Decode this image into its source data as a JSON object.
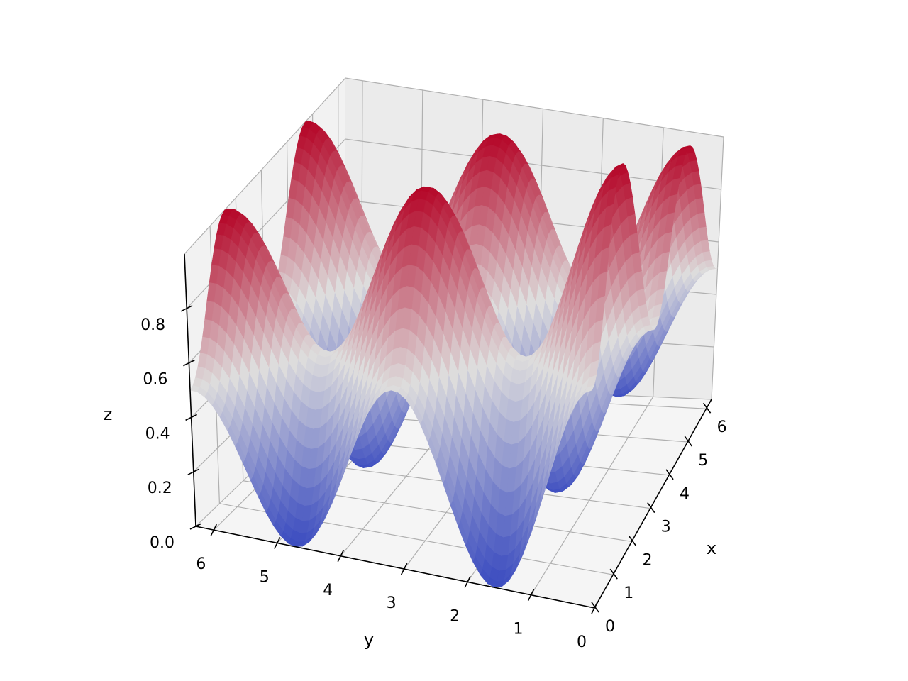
{
  "chart_data": {
    "type": "surface",
    "colormap": "coolwarm",
    "colormap_colors": [
      "#3b4cc0",
      "#dddcdc",
      "#b40426"
    ],
    "function": "z = (sin(x)^2 + cos(y)^2) / 2",
    "x": {
      "label": "x",
      "range": [
        0,
        6.283
      ],
      "ticks": [
        0,
        1,
        2,
        3,
        4,
        5,
        6
      ]
    },
    "y": {
      "label": "y",
      "range": [
        0,
        6.283
      ],
      "ticks": [
        0,
        1,
        2,
        3,
        4,
        5,
        6
      ]
    },
    "z": {
      "label": "z",
      "range": [
        0,
        1
      ],
      "ticks": [
        "0.0",
        "0.2",
        "0.4",
        "0.6",
        "0.8"
      ]
    },
    "tick_labels": {
      "x": [
        "0",
        "1",
        "2",
        "3",
        "4",
        "5",
        "6"
      ],
      "y": [
        "0",
        "1",
        "2",
        "3",
        "4",
        "5",
        "6"
      ],
      "z": [
        "0.0",
        "0.2",
        "0.4",
        "0.6",
        "0.8"
      ]
    },
    "surface_grid": {
      "x_values": [
        0,
        0.785,
        1.571,
        2.356,
        3.142,
        3.927,
        4.712,
        5.498,
        6.283
      ],
      "y_values": [
        0,
        0.785,
        1.571,
        2.356,
        3.142,
        3.927,
        4.712,
        5.498,
        6.283
      ],
      "z_values_note_sample_rows": [
        [
          0.5,
          0.75,
          1.0,
          0.75,
          0.5,
          0.75,
          1.0,
          0.75,
          0.5
        ],
        [
          0.25,
          0.5,
          0.75,
          0.5,
          0.25,
          0.5,
          0.75,
          0.5,
          0.25
        ],
        [
          0.0,
          0.25,
          0.5,
          0.25,
          0.0,
          0.25,
          0.5,
          0.25,
          0.0
        ]
      ]
    },
    "peaks": [
      {
        "x": 1.571,
        "y": 6.283,
        "z": 1.0
      },
      {
        "x": 4.712,
        "y": 6.283,
        "z": 1.0
      },
      {
        "x": 1.571,
        "y": 3.142,
        "z": 1.0
      },
      {
        "x": 4.712,
        "y": 3.142,
        "z": 1.0
      },
      {
        "x": 1.571,
        "y": 0,
        "z": 1.0
      },
      {
        "x": 4.712,
        "y": 0,
        "z": 1.0
      }
    ],
    "troughs": [
      {
        "x": 0,
        "y": 1.571,
        "z": 0.0
      },
      {
        "x": 3.142,
        "y": 1.571,
        "z": 0.0
      },
      {
        "x": 6.283,
        "y": 1.571,
        "z": 0.0
      },
      {
        "x": 0,
        "y": 4.712,
        "z": 0.0
      },
      {
        "x": 3.142,
        "y": 4.712,
        "z": 0.0
      },
      {
        "x": 6.283,
        "y": 4.712,
        "z": 0.0
      }
    ],
    "grid": true,
    "title": ""
  }
}
